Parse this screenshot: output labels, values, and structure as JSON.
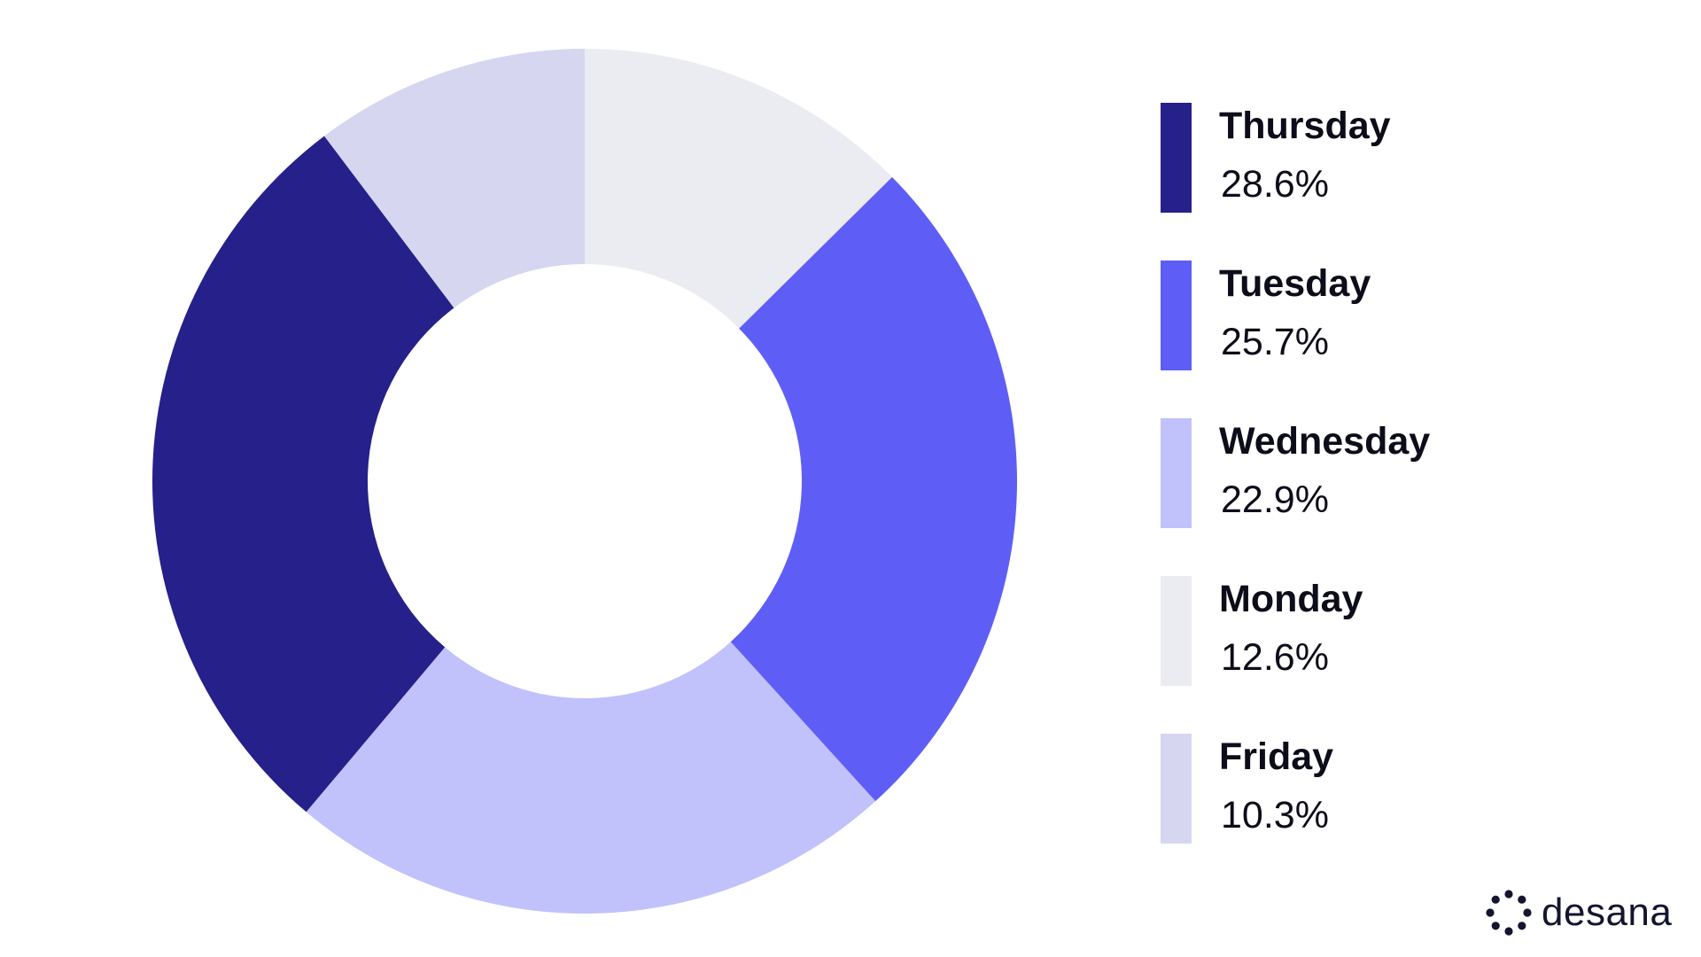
{
  "chart_data": {
    "type": "pie",
    "donut": true,
    "slices": [
      {
        "label": "Monday",
        "value": 12.6,
        "display": "12.6%",
        "color": "#ebebf2"
      },
      {
        "label": "Tuesday",
        "value": 25.7,
        "display": "25.7%",
        "color": "#5e5ef6"
      },
      {
        "label": "Wednesday",
        "value": 22.9,
        "display": "22.9%",
        "color": "#c1c1fc"
      },
      {
        "label": "Thursday",
        "value": 28.6,
        "display": "28.6%",
        "color": "#25208a"
      },
      {
        "label": "Friday",
        "value": 10.3,
        "display": "10.3%",
        "color": "#d6d6f0"
      }
    ],
    "legend_order": [
      "Thursday",
      "Tuesday",
      "Wednesday",
      "Monday",
      "Friday"
    ],
    "legend_placement": "right"
  },
  "brand": {
    "name": "desana",
    "logo_icon": "desana-dot-ring-logo",
    "color": "#151530"
  }
}
